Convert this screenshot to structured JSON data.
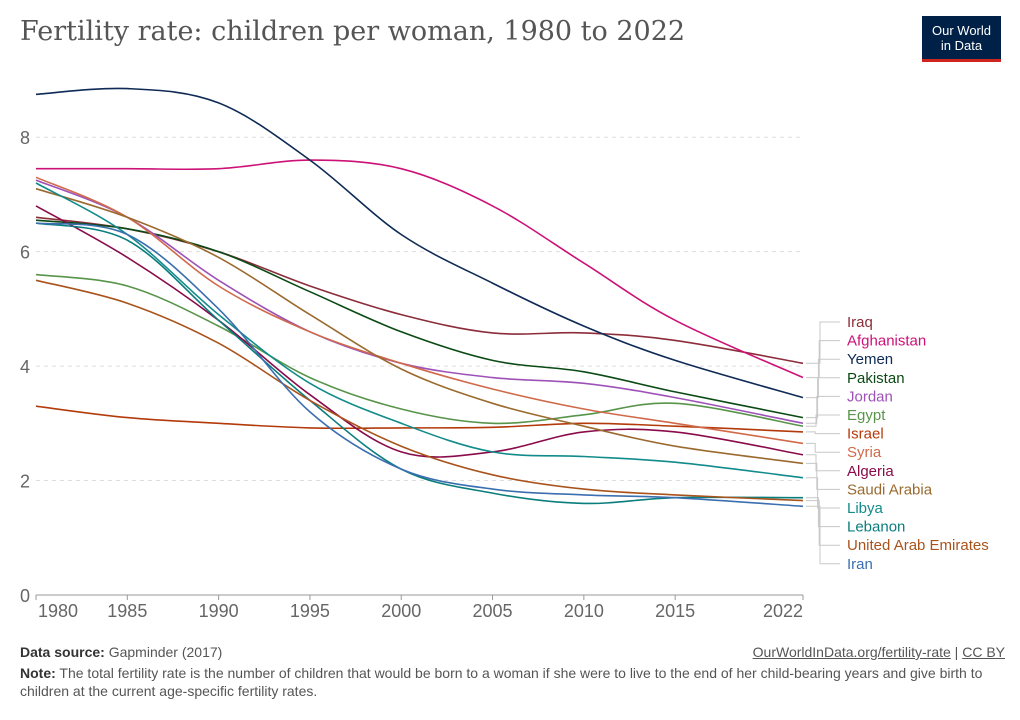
{
  "title": "Fertility rate: children per woman, 1980 to 2022",
  "logo": {
    "line1": "Our World",
    "line2": "in Data"
  },
  "footer": {
    "source_label": "Data source:",
    "source_text": "Gapminder (2017)",
    "url_text": "OurWorldInData.org/fertility-rate",
    "separator": "|",
    "license": "CC BY",
    "note_label": "Note:",
    "note_text": "The total fertility rate is the number of children that would be born to a woman if she were to live to the end of her child-bearing years and give birth to children at the current age-specific fertility rates."
  },
  "chart_data": {
    "type": "line",
    "title": "Fertility rate: children per woman, 1980 to 2022",
    "xlabel": "",
    "ylabel": "",
    "xlim": [
      1980,
      2022
    ],
    "ylim": [
      0,
      9
    ],
    "xticks": [
      "1980",
      "1985",
      "1990",
      "1995",
      "2000",
      "2005",
      "2010",
      "2015",
      "2022"
    ],
    "yticks": [
      "0",
      "2",
      "4",
      "6",
      "8"
    ],
    "grid": "horizontal dashed",
    "legend": "right, labels at line ends",
    "x": [
      1980,
      1985,
      1990,
      1995,
      2000,
      2005,
      2010,
      2015,
      2022
    ],
    "series": [
      {
        "name": "Iraq",
        "color": "#8c2d3a",
        "values": [
          6.6,
          6.4,
          6.0,
          5.4,
          4.9,
          4.58,
          4.58,
          4.45,
          4.05
        ]
      },
      {
        "name": "Afghanistan",
        "color": "#cc1177",
        "values": [
          7.45,
          7.45,
          7.45,
          7.6,
          7.45,
          6.8,
          5.8,
          4.8,
          3.8
        ]
      },
      {
        "name": "Yemen",
        "color": "#0e2a55",
        "values": [
          8.75,
          8.85,
          8.6,
          7.6,
          6.3,
          5.45,
          4.7,
          4.1,
          3.45
        ]
      },
      {
        "name": "Pakistan",
        "color": "#0b4a14",
        "values": [
          6.55,
          6.4,
          6.0,
          5.3,
          4.6,
          4.1,
          3.9,
          3.55,
          3.1
        ]
      },
      {
        "name": "Jordan",
        "color": "#9e52b8",
        "values": [
          7.25,
          6.6,
          5.5,
          4.6,
          4.05,
          3.8,
          3.7,
          3.45,
          3.0
        ]
      },
      {
        "name": "Egypt",
        "color": "#58944a",
        "values": [
          5.6,
          5.4,
          4.7,
          3.8,
          3.25,
          3.0,
          3.15,
          3.35,
          2.95
        ]
      },
      {
        "name": "Israel",
        "color": "#b33b0b",
        "values": [
          3.3,
          3.1,
          3.0,
          2.92,
          2.92,
          2.93,
          3.0,
          2.95,
          2.85
        ]
      },
      {
        "name": "Syria",
        "color": "#d06a4a",
        "values": [
          7.3,
          6.6,
          5.4,
          4.6,
          4.05,
          3.6,
          3.25,
          3.0,
          2.65
        ]
      },
      {
        "name": "Algeria",
        "color": "#8a0b4a",
        "values": [
          6.8,
          5.9,
          4.8,
          3.5,
          2.5,
          2.5,
          2.85,
          2.85,
          2.45
        ]
      },
      {
        "name": "Saudi Arabia",
        "color": "#9b6a2f",
        "values": [
          7.1,
          6.6,
          5.9,
          4.9,
          3.95,
          3.35,
          2.95,
          2.6,
          2.3
        ]
      },
      {
        "name": "Libya",
        "color": "#138b8b",
        "values": [
          7.2,
          6.3,
          4.9,
          3.7,
          3.0,
          2.5,
          2.42,
          2.32,
          2.05
        ]
      },
      {
        "name": "Lebanon",
        "color": "#0a7d7d",
        "values": [
          6.5,
          6.2,
          4.8,
          3.4,
          2.2,
          1.78,
          1.6,
          1.7,
          1.7
        ]
      },
      {
        "name": "United Arab Emirates",
        "color": "#a9531c",
        "values": [
          5.5,
          5.1,
          4.4,
          3.4,
          2.6,
          2.1,
          1.85,
          1.75,
          1.65
        ]
      },
      {
        "name": "Iran",
        "color": "#3b6fb0",
        "values": [
          6.5,
          6.3,
          5.0,
          3.2,
          2.2,
          1.85,
          1.75,
          1.7,
          1.55
        ]
      }
    ]
  }
}
